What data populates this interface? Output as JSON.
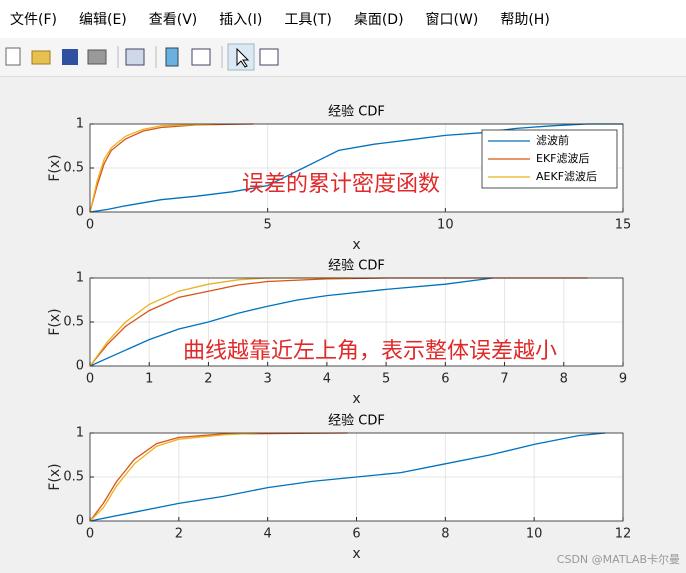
{
  "menu": [
    "文件(F)",
    "编辑(E)",
    "查看(V)",
    "插入(I)",
    "工具(T)",
    "桌面(D)",
    "窗口(W)",
    "帮助(H)"
  ],
  "watermark": "CSDN @MATLAB卡尔曼",
  "chart_data": [
    {
      "type": "line",
      "title": "经验 CDF",
      "x_label": "x",
      "y_label": "F(x)",
      "annotation": "误差的累计密度函数",
      "xlim": [
        0,
        15
      ],
      "ylim": [
        0,
        1
      ],
      "xticks": [
        0,
        5,
        10,
        15
      ],
      "yticks": [
        0,
        0.5,
        1
      ],
      "grid": true,
      "legend": "upper right",
      "series": [
        {
          "name": "滤波前",
          "color": "#0072bd",
          "x": [
            0,
            0.5,
            1,
            2,
            3,
            4,
            5,
            5.5,
            6,
            6.5,
            7,
            8,
            9,
            10,
            11,
            12,
            13,
            14,
            15
          ],
          "values": [
            0,
            0.03,
            0.07,
            0.14,
            0.18,
            0.23,
            0.3,
            0.4,
            0.5,
            0.6,
            0.7,
            0.77,
            0.82,
            0.87,
            0.9,
            0.95,
            0.98,
            1,
            1
          ]
        },
        {
          "name": "EKF滤波后",
          "color": "#d95319",
          "x": [
            0,
            0.2,
            0.4,
            0.6,
            1,
            1.5,
            2,
            3,
            4.6
          ],
          "values": [
            0,
            0.3,
            0.55,
            0.7,
            0.83,
            0.92,
            0.96,
            0.99,
            1
          ]
        },
        {
          "name": "AEKF滤波后",
          "color": "#edb120",
          "x": [
            0,
            0.2,
            0.4,
            0.6,
            1,
            1.5,
            2,
            3.5
          ],
          "values": [
            0,
            0.35,
            0.6,
            0.73,
            0.86,
            0.94,
            0.98,
            1
          ]
        }
      ]
    },
    {
      "type": "line",
      "title": "经验 CDF",
      "x_label": "x",
      "y_label": "F(x)",
      "annotation": "曲线越靠近左上角，表示整体误差越小",
      "xlim": [
        0,
        9
      ],
      "ylim": [
        0,
        1
      ],
      "xticks": [
        0,
        1,
        2,
        3,
        4,
        5,
        6,
        7,
        8,
        9
      ],
      "yticks": [
        0,
        0.5,
        1
      ],
      "grid": true,
      "series": [
        {
          "color": "#0072bd",
          "x": [
            0,
            0.5,
            1,
            1.5,
            2,
            2.5,
            3,
            3.5,
            4,
            5,
            6,
            6.8
          ],
          "values": [
            0,
            0.15,
            0.3,
            0.42,
            0.5,
            0.6,
            0.68,
            0.75,
            0.8,
            0.87,
            0.93,
            1
          ]
        },
        {
          "color": "#d95319",
          "x": [
            0,
            0.3,
            0.6,
            1,
            1.5,
            2,
            2.5,
            3,
            4,
            5,
            8.4
          ],
          "values": [
            0,
            0.25,
            0.45,
            0.63,
            0.78,
            0.85,
            0.92,
            0.96,
            0.99,
            1,
            1
          ]
        },
        {
          "color": "#edb120",
          "x": [
            0,
            0.3,
            0.6,
            1,
            1.5,
            2,
            2.5,
            3,
            4.4
          ],
          "values": [
            0,
            0.28,
            0.5,
            0.7,
            0.85,
            0.93,
            0.98,
            1,
            1
          ]
        }
      ]
    },
    {
      "type": "line",
      "title": "经验 CDF",
      "x_label": "x",
      "y_label": "F(x)",
      "xlim": [
        0,
        12
      ],
      "ylim": [
        0,
        1
      ],
      "xticks": [
        0,
        2,
        4,
        6,
        8,
        10,
        12
      ],
      "yticks": [
        0,
        0.5,
        1
      ],
      "grid": true,
      "series": [
        {
          "color": "#0072bd",
          "x": [
            0,
            1,
            2,
            3,
            4,
            5,
            6,
            7,
            8,
            9,
            10,
            11,
            11.6
          ],
          "values": [
            0,
            0.1,
            0.2,
            0.28,
            0.38,
            0.45,
            0.5,
            0.55,
            0.65,
            0.75,
            0.87,
            0.97,
            1
          ]
        },
        {
          "color": "#d95319",
          "x": [
            0,
            0.3,
            0.6,
            1,
            1.5,
            2,
            3,
            5.8
          ],
          "values": [
            0,
            0.2,
            0.45,
            0.7,
            0.88,
            0.95,
            0.99,
            1
          ]
        },
        {
          "color": "#edb120",
          "x": [
            0,
            0.3,
            0.6,
            1,
            1.5,
            2,
            3,
            3.8
          ],
          "values": [
            0,
            0.15,
            0.4,
            0.65,
            0.85,
            0.93,
            0.98,
            1
          ]
        }
      ]
    }
  ]
}
